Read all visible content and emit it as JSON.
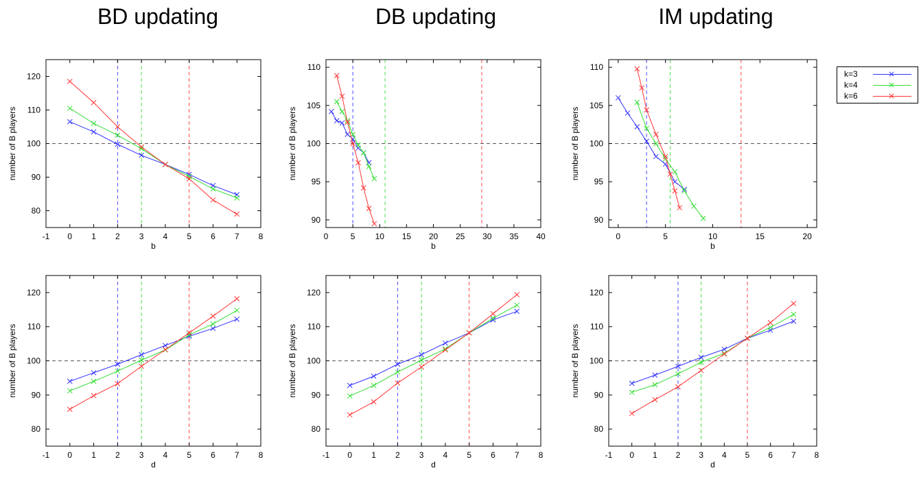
{
  "titles": [
    "BD updating",
    "DB updating",
    "IM updating"
  ],
  "legend": [
    {
      "label": "k=3",
      "color": "#3333ff"
    },
    {
      "label": "k=4",
      "color": "#33dd33"
    },
    {
      "label": "k=6",
      "color": "#ff3333"
    }
  ],
  "chart_data": [
    {
      "type": "line",
      "column": "BD updating",
      "xlabel": "b",
      "ylabel": "number of B players",
      "xlim": [
        -1,
        8
      ],
      "ylim": [
        75,
        125
      ],
      "xticks": [
        -1,
        0,
        1,
        2,
        3,
        4,
        5,
        6,
        7,
        8
      ],
      "yticks": [
        80,
        90,
        100,
        110,
        120
      ],
      "hline": 100,
      "vlines": [
        2,
        3,
        5
      ],
      "series": [
        {
          "name": "k=3",
          "x": [
            0,
            1,
            2,
            3,
            4,
            5,
            6,
            7
          ],
          "y": [
            106.5,
            103.5,
            99.8,
            96.5,
            93.8,
            90.8,
            87.5,
            84.8
          ]
        },
        {
          "name": "k=4",
          "x": [
            0,
            1,
            2,
            3,
            4,
            5,
            6,
            7
          ],
          "y": [
            110.5,
            106,
            102.5,
            98.5,
            93.8,
            90.2,
            86.5,
            83.8
          ]
        },
        {
          "name": "k=6",
          "x": [
            0,
            1,
            2,
            3,
            4,
            5,
            6,
            7
          ],
          "y": [
            118.5,
            112.2,
            105,
            99,
            93.8,
            89.5,
            83.2,
            79
          ]
        }
      ]
    },
    {
      "type": "line",
      "column": "DB updating",
      "xlabel": "b",
      "ylabel": "number of B players",
      "xlim": [
        0,
        40
      ],
      "ylim": [
        89,
        111
      ],
      "xticks": [
        0,
        5,
        10,
        15,
        20,
        25,
        30,
        35,
        40
      ],
      "yticks": [
        90,
        95,
        100,
        105,
        110
      ],
      "hline": 100,
      "vlines": [
        5,
        11,
        29
      ],
      "series": [
        {
          "name": "k=3",
          "x": [
            1,
            2,
            3,
            4,
            5,
            6,
            7,
            8
          ],
          "y": [
            104.2,
            103,
            102.7,
            101.2,
            100.6,
            99.4,
            98.8,
            97.5
          ]
        },
        {
          "name": "k=4",
          "x": [
            2,
            3,
            4,
            5,
            6,
            7,
            8,
            9
          ],
          "y": [
            105.5,
            104.2,
            103,
            101.2,
            99.8,
            98.8,
            97,
            95.4
          ]
        },
        {
          "name": "k=6",
          "x": [
            2,
            3,
            4,
            5,
            6,
            7,
            8,
            9
          ],
          "y": [
            108.9,
            106.2,
            102.8,
            100,
            97.5,
            94.2,
            91.5,
            89.5
          ]
        }
      ]
    },
    {
      "type": "line",
      "column": "IM updating",
      "xlabel": "b",
      "ylabel": "number of B players",
      "xlim": [
        -1,
        21
      ],
      "ylim": [
        89,
        111
      ],
      "xticks": [
        0,
        5,
        10,
        15,
        20
      ],
      "yticks": [
        90,
        95,
        100,
        105,
        110
      ],
      "hline": 100,
      "vlines": [
        3,
        5.5,
        13
      ],
      "series": [
        {
          "name": "k=3",
          "x": [
            0,
            1,
            2,
            3,
            4,
            5,
            6,
            7
          ],
          "y": [
            106,
            104,
            102.2,
            100.3,
            98.3,
            97.3,
            95,
            94
          ]
        },
        {
          "name": "k=4",
          "x": [
            2,
            3,
            4,
            5,
            6,
            7,
            8,
            9
          ],
          "y": [
            105.4,
            102,
            100,
            98,
            96.3,
            93.8,
            91.8,
            90.2
          ]
        },
        {
          "name": "k=6",
          "x": [
            2,
            2.5,
            3,
            4,
            5,
            5.5,
            6,
            6.5
          ],
          "y": [
            109.8,
            107.3,
            104.4,
            101.2,
            98.3,
            96,
            93.8,
            91.6
          ]
        }
      ]
    },
    {
      "type": "line",
      "column": "BD updating",
      "xlabel": "d",
      "ylabel": "number of B players",
      "xlim": [
        -1,
        8
      ],
      "ylim": [
        75,
        125
      ],
      "xticks": [
        -1,
        0,
        1,
        2,
        3,
        4,
        5,
        6,
        7,
        8
      ],
      "yticks": [
        80,
        90,
        100,
        110,
        120
      ],
      "hline": 100,
      "vlines": [
        2,
        3,
        5
      ],
      "series": [
        {
          "name": "k=3",
          "x": [
            0,
            1,
            2,
            3,
            4,
            5,
            6,
            7
          ],
          "y": [
            94,
            96.5,
            99,
            101.8,
            104.5,
            107.2,
            109.5,
            112.2
          ]
        },
        {
          "name": "k=4",
          "x": [
            0,
            1,
            2,
            3,
            4,
            5,
            6,
            7
          ],
          "y": [
            91.2,
            94,
            97,
            100.2,
            103.2,
            107.6,
            110.8,
            114.8
          ]
        },
        {
          "name": "k=6",
          "x": [
            0,
            1,
            2,
            3,
            4,
            5,
            6,
            7
          ],
          "y": [
            85.8,
            89.8,
            93.3,
            98.4,
            103.3,
            108.2,
            113.1,
            118.2
          ]
        }
      ]
    },
    {
      "type": "line",
      "column": "DB updating",
      "xlabel": "d",
      "ylabel": "number of B players",
      "xlim": [
        -1,
        8
      ],
      "ylim": [
        75,
        125
      ],
      "xticks": [
        -1,
        0,
        1,
        2,
        3,
        4,
        5,
        6,
        7,
        8
      ],
      "yticks": [
        80,
        90,
        100,
        110,
        120
      ],
      "hline": 100,
      "vlines": [
        2,
        3,
        5
      ],
      "series": [
        {
          "name": "k=3",
          "x": [
            0,
            1,
            2,
            3,
            4,
            5,
            6,
            7
          ],
          "y": [
            92.8,
            95.5,
            99,
            101.8,
            105.2,
            108.2,
            112,
            114.5
          ]
        },
        {
          "name": "k=4",
          "x": [
            0,
            1,
            2,
            3,
            4,
            5,
            6,
            7
          ],
          "y": [
            89.7,
            92.8,
            96.7,
            100.2,
            103.5,
            108.2,
            112.5,
            116.3
          ]
        },
        {
          "name": "k=6",
          "x": [
            0,
            1,
            2,
            3,
            4,
            5,
            6,
            7
          ],
          "y": [
            84.2,
            88,
            93.5,
            98.2,
            103.2,
            108.2,
            113.8,
            119.4
          ]
        }
      ]
    },
    {
      "type": "line",
      "column": "IM updating",
      "xlabel": "d",
      "ylabel": "number of B players",
      "xlim": [
        -1,
        8
      ],
      "ylim": [
        75,
        125
      ],
      "xticks": [
        -1,
        0,
        1,
        2,
        3,
        4,
        5,
        6,
        7,
        8
      ],
      "yticks": [
        80,
        90,
        100,
        110,
        120
      ],
      "hline": 100,
      "vlines": [
        2,
        3,
        5
      ],
      "series": [
        {
          "name": "k=3",
          "x": [
            0,
            1,
            2,
            3,
            4,
            5,
            6,
            7
          ],
          "y": [
            93.4,
            95.8,
            98.4,
            101,
            103.4,
            106.6,
            109,
            111.6
          ]
        },
        {
          "name": "k=4",
          "x": [
            0,
            1,
            2,
            3,
            4,
            5,
            6,
            7
          ],
          "y": [
            90.8,
            93,
            96.2,
            99.6,
            102.2,
            106.6,
            109.8,
            113.6
          ]
        },
        {
          "name": "k=6",
          "x": [
            0,
            1,
            2,
            3,
            4,
            5,
            6,
            7
          ],
          "y": [
            84.6,
            88.6,
            92.4,
            97.2,
            102,
            106.6,
            111.2,
            116.8
          ]
        }
      ]
    }
  ]
}
